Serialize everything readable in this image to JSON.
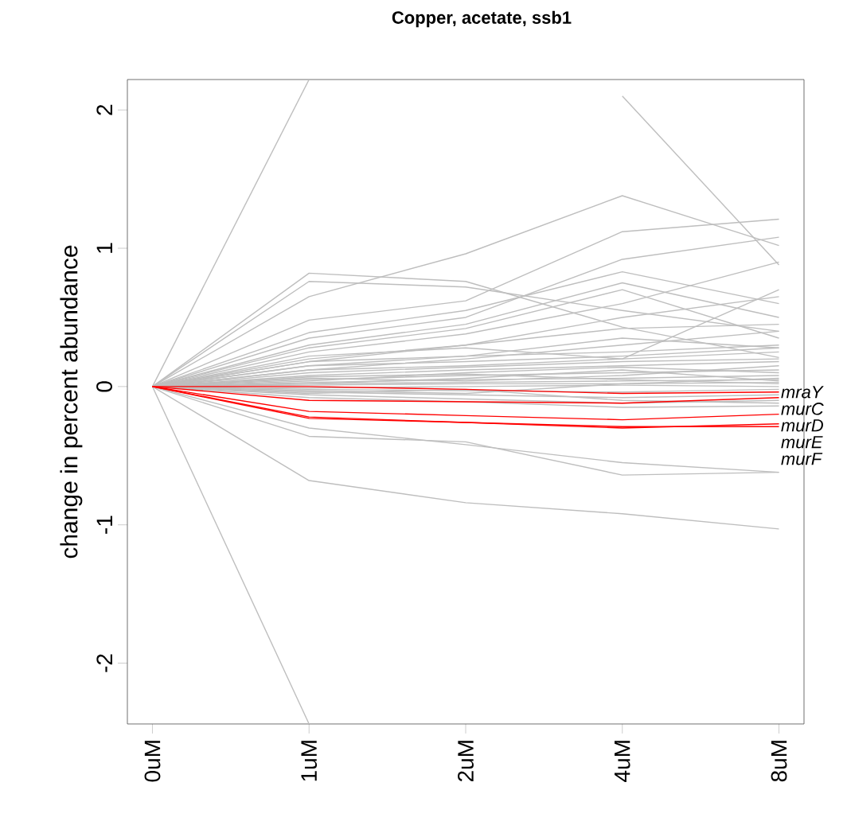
{
  "chart_data": {
    "type": "line",
    "title": "Copper, acetate, ssb1",
    "ylabel": "change in percent abundance",
    "categories": [
      "0uM",
      "1uM",
      "2uM",
      "4uM",
      "8uM"
    ],
    "ylim": [
      -2.44,
      2.22
    ],
    "yticks": [
      -2,
      -1,
      0,
      1,
      2
    ],
    "series": [
      {
        "color": "#bebebe",
        "values": [
          0,
          0.05,
          0.08,
          0.1,
          0.12
        ]
      },
      {
        "color": "#bebebe",
        "values": [
          0,
          0.03,
          0.05,
          0.06,
          0.08
        ]
      },
      {
        "color": "#bebebe",
        "values": [
          0,
          0.02,
          0.03,
          0.04,
          0.05
        ]
      },
      {
        "color": "#bebebe",
        "values": [
          0,
          0.01,
          0.02,
          0.02,
          0.03
        ]
      },
      {
        "color": "#bebebe",
        "values": [
          0,
          -0.01,
          0,
          0.01,
          0.0
        ]
      },
      {
        "color": "#bebebe",
        "values": [
          0,
          -0.02,
          -0.03,
          -0.04,
          -0.02
        ]
      },
      {
        "color": "#bebebe",
        "values": [
          0,
          -0.04,
          -0.06,
          -0.08,
          -0.06
        ]
      },
      {
        "color": "#bebebe",
        "values": [
          0,
          -0.06,
          -0.09,
          -0.12,
          -0.1
        ]
      },
      {
        "color": "#bebebe",
        "values": [
          0,
          -0.08,
          -0.11,
          -0.15,
          -0.14
        ]
      },
      {
        "color": "#bebebe",
        "values": [
          0,
          0.08,
          0.12,
          0.15,
          0.18
        ]
      },
      {
        "color": "#bebebe",
        "values": [
          0,
          0.1,
          0.14,
          0.18,
          0.2
        ]
      },
      {
        "color": "#bebebe",
        "values": [
          0,
          0.12,
          0.15,
          0.2,
          0.25
        ]
      },
      {
        "color": "#bebebe",
        "values": [
          0,
          0.15,
          0.18,
          0.22,
          0.28
        ]
      },
      {
        "color": "#bebebe",
        "values": [
          0,
          0.18,
          0.22,
          0.25,
          0.3
        ]
      },
      {
        "color": "#bebebe",
        "values": [
          0,
          0.04,
          0.1,
          0.14,
          0.1
        ]
      },
      {
        "color": "#bebebe",
        "values": [
          0,
          0.06,
          0.04,
          0.08,
          0.15
        ]
      },
      {
        "color": "#bebebe",
        "values": [
          0,
          -0.03,
          -0.05,
          0.02,
          0.06
        ]
      },
      {
        "color": "#bebebe",
        "values": [
          0,
          0.02,
          0.06,
          0.12,
          0.04
        ]
      },
      {
        "color": "#bebebe",
        "values": [
          0,
          -0.05,
          -0.02,
          -0.1,
          -0.12
        ]
      },
      {
        "color": "#bebebe",
        "values": [
          0,
          0.07,
          0.09,
          0.05,
          0.02
        ]
      },
      {
        "color": "#bebebe",
        "values": [
          0,
          0.82,
          0.76,
          0.43,
          0.21
        ]
      },
      {
        "color": "#bebebe",
        "values": [
          0,
          0.76,
          0.72,
          0.55,
          0.4
        ]
      },
      {
        "color": "#bebebe",
        "values": [
          0,
          0.65,
          0.96,
          1.38,
          1.02
        ]
      },
      {
        "color": "#bebebe",
        "values": [
          0,
          0.48,
          0.62,
          1.12,
          1.21
        ]
      },
      {
        "color": "#bebebe",
        "values": [
          0,
          0.35,
          0.5,
          0.92,
          1.08
        ]
      },
      {
        "color": "#bebebe",
        "values": [
          0,
          0.39,
          0.55,
          0.83,
          0.6
        ]
      },
      {
        "color": "#bebebe",
        "values": [
          0,
          0.3,
          0.45,
          0.75,
          0.5
        ]
      },
      {
        "color": "#bebebe",
        "values": [
          0,
          0.28,
          0.42,
          0.7,
          0.35
        ]
      },
      {
        "color": "#bebebe",
        "values": [
          0,
          0.25,
          0.38,
          0.6,
          0.9
        ]
      },
      {
        "color": "#bebebe",
        "values": [
          0,
          0.2,
          0.3,
          0.5,
          0.65
        ]
      },
      {
        "color": "#bebebe",
        "values": [
          0,
          0.18,
          0.3,
          0.42,
          0.45
        ]
      },
      {
        "color": "#bebebe",
        "values": [
          0,
          0.22,
          0.28,
          0.2,
          0.7
        ]
      },
      {
        "color": "#bebebe",
        "values": [
          0,
          0.15,
          0.22,
          0.35,
          0.28
        ]
      },
      {
        "color": "#bebebe",
        "values": [
          0,
          0.12,
          0.2,
          0.3,
          0.4
        ]
      },
      {
        "color": "#bebebe",
        "values": [
          0,
          -0.36,
          -0.4,
          -0.64,
          -0.62
        ]
      },
      {
        "color": "#bebebe",
        "values": [
          0,
          -0.3,
          -0.42,
          -0.55,
          -0.62
        ]
      },
      {
        "color": "#bebebe",
        "values": [
          0,
          -0.68,
          -0.84,
          -0.92,
          -1.03
        ]
      },
      {
        "color": "#bebebe",
        "values": [
          0,
          2.22,
          null,
          null,
          null
        ]
      },
      {
        "color": "#bebebe",
        "values": [
          0,
          -2.44,
          null,
          null,
          null
        ]
      },
      {
        "color": "#bebebe",
        "values": [
          null,
          null,
          null,
          2.1,
          0.88
        ]
      },
      {
        "name": "mraY",
        "color": "#ff0000",
        "values": [
          0,
          0,
          -0.02,
          -0.05,
          -0.04
        ]
      },
      {
        "name": "murC",
        "color": "#ff0000",
        "values": [
          0,
          -0.1,
          -0.11,
          -0.12,
          -0.08
        ]
      },
      {
        "name": "murD",
        "color": "#ff0000",
        "values": [
          0,
          -0.18,
          -0.21,
          -0.24,
          -0.2
        ]
      },
      {
        "name": "murE",
        "color": "#ff0000",
        "values": [
          0,
          -0.22,
          -0.26,
          -0.3,
          -0.27
        ]
      },
      {
        "name": "murF",
        "color": "#ff0000",
        "values": [
          0,
          -0.23,
          -0.26,
          -0.29,
          -0.29
        ]
      }
    ]
  }
}
